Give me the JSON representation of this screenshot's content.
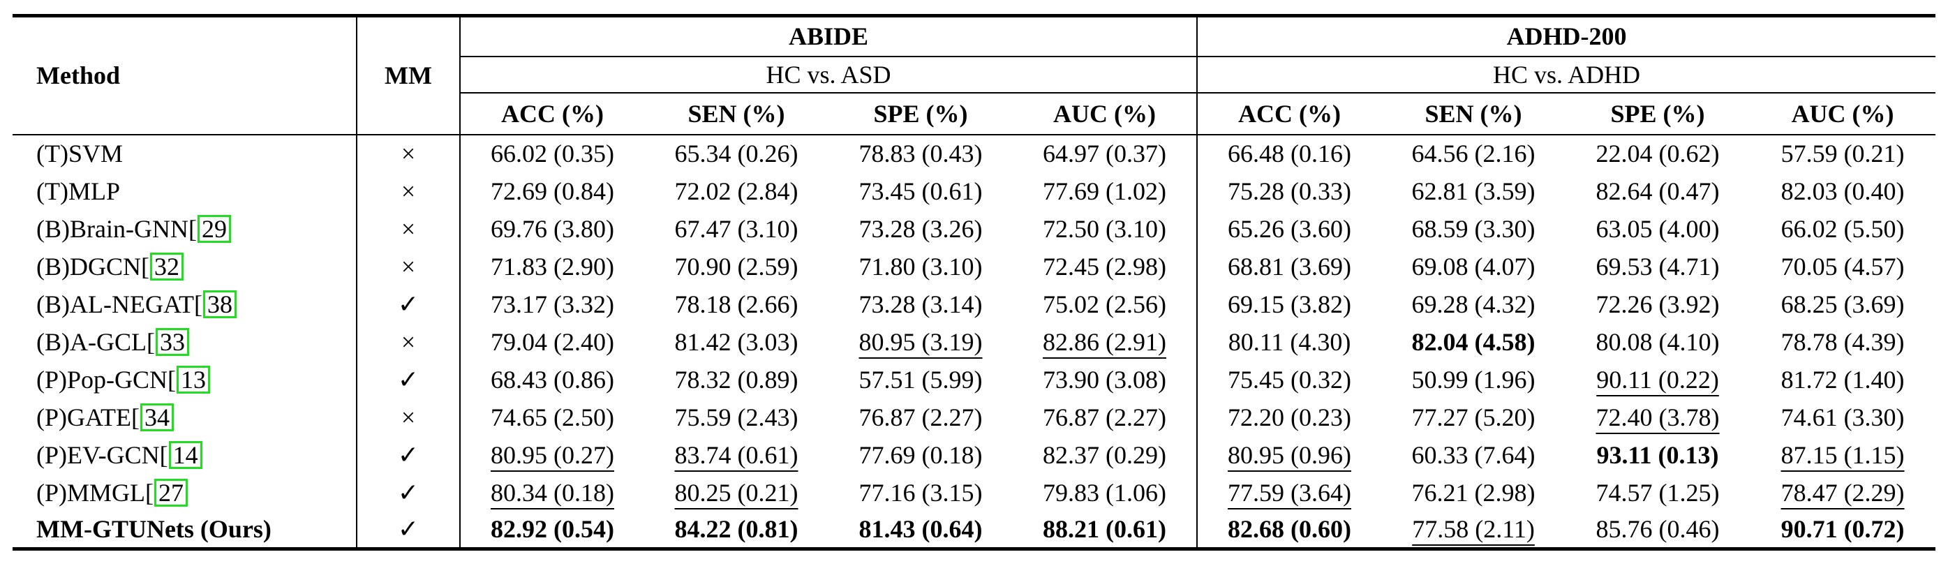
{
  "header": {
    "method": "Method",
    "mm": "MM",
    "datasets": [
      {
        "name": "ABIDE",
        "task": "HC vs. ASD"
      },
      {
        "name": "ADHD-200",
        "task": "HC vs. ADHD"
      }
    ],
    "metrics": [
      "ACC (%)",
      "SEN (%)",
      "SPE (%)",
      "AUC (%)",
      "ACC (%)",
      "SEN (%)",
      "SPE (%)",
      "AUC (%)"
    ]
  },
  "rows": [
    {
      "method": "(T)SVM",
      "cite": "",
      "mm": "×",
      "values": [
        "66.02 (0.35)",
        "65.34 (0.26)",
        "78.83 (0.43)",
        "64.97 (0.37)",
        "66.48 (0.16)",
        "64.56 (2.16)",
        "22.04 (0.62)",
        "57.59 (0.21)"
      ]
    },
    {
      "method": "(T)MLP",
      "cite": "",
      "mm": "×",
      "values": [
        "72.69 (0.84)",
        "72.02 (2.84)",
        "73.45 (0.61)",
        "77.69 (1.02)",
        "75.28 (0.33)",
        "62.81 (3.59)",
        "82.64 (0.47)",
        "82.03 (0.40)"
      ]
    },
    {
      "method": "(B)Brain-GNN[",
      "cite": "29",
      "mm": "×",
      "values": [
        "69.76 (3.80)",
        "67.47 (3.10)",
        "73.28 (3.26)",
        "72.50 (3.10)",
        "65.26 (3.60)",
        "68.59 (3.30)",
        "63.05 (4.00)",
        "66.02 (5.50)"
      ]
    },
    {
      "method": "(B)DGCN[",
      "cite": "32",
      "mm": "×",
      "values": [
        "71.83 (2.90)",
        "70.90 (2.59)",
        "71.80 (3.10)",
        "72.45 (2.98)",
        "68.81 (3.69)",
        "69.08 (4.07)",
        "69.53 (4.71)",
        "70.05 (4.57)"
      ]
    },
    {
      "method": "(B)AL-NEGAT[",
      "cite": "38",
      "mm": "✓",
      "values": [
        "73.17 (3.32)",
        "78.18 (2.66)",
        "73.28 (3.14)",
        "75.02 (2.56)",
        "69.15 (3.82)",
        "69.28 (4.32)",
        "72.26 (3.92)",
        "68.25 (3.69)"
      ]
    },
    {
      "method": "(B)A-GCL[",
      "cite": "33",
      "mm": "×",
      "values": [
        "79.04 (2.40)",
        "81.42 (3.03)",
        "80.95 (3.19)",
        "82.86 (2.91)",
        "80.11 (4.30)",
        "82.04 (4.58)",
        "80.08 (4.10)",
        "78.78 (4.39)"
      ]
    },
    {
      "method": "(P)Pop-GCN[",
      "cite": "13",
      "mm": "✓",
      "values": [
        "68.43 (0.86)",
        "78.32 (0.89)",
        "57.51 (5.99)",
        "73.90 (3.08)",
        "75.45 (0.32)",
        "50.99 (1.96)",
        "90.11 (0.22)",
        "81.72 (1.40)"
      ]
    },
    {
      "method": "(P)GATE[",
      "cite": "34",
      "mm": "×",
      "values": [
        "74.65 (2.50)",
        "75.59 (2.43)",
        "76.87 (2.27)",
        "76.87 (2.27)",
        "72.20 (0.23)",
        "77.27 (5.20)",
        "72.40 (3.78)",
        "74.61 (3.30)"
      ]
    },
    {
      "method": "(P)EV-GCN[",
      "cite": "14",
      "mm": "✓",
      "values": [
        "80.95 (0.27)",
        "83.74 (0.61)",
        "77.69 (0.18)",
        "82.37 (0.29)",
        "80.95 (0.96)",
        "60.33 (7.64)",
        "93.11 (0.13)",
        "87.15 (1.15)"
      ]
    },
    {
      "method": "(P)MMGL[",
      "cite": "27",
      "mm": "✓",
      "values": [
        "80.34 (0.18)",
        "80.25 (0.21)",
        "77.16 (3.15)",
        "79.83 (1.06)",
        "77.59 (3.64)",
        "76.21 (2.98)",
        "74.57 (1.25)",
        "78.47 (2.29)"
      ]
    },
    {
      "method": "MM-GTUNets (Ours)",
      "cite": "",
      "mm": "✓",
      "values": [
        "82.92 (0.54)",
        "84.22 (0.81)",
        "81.43 (0.64)",
        "88.21 (0.61)",
        "82.68 (0.60)",
        "77.58 (2.11)",
        "85.76 (0.46)",
        "90.71 (0.72)"
      ]
    }
  ]
}
